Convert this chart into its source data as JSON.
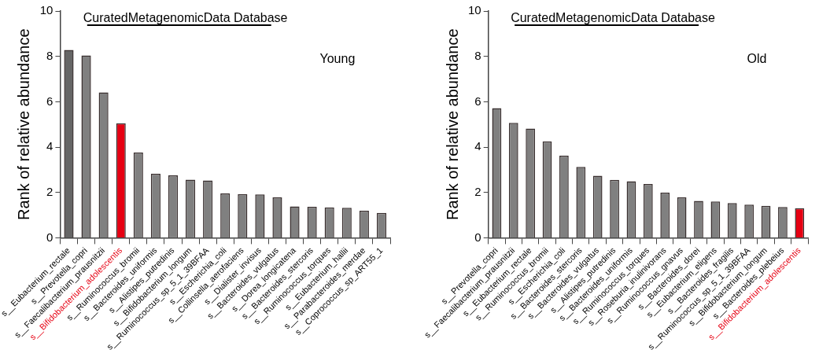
{
  "chart_data": [
    {
      "type": "bar",
      "title": "CuratedMetagenomicData Database",
      "ylabel": "Rank of relative abundance",
      "annotations": [
        "Young"
      ],
      "categories": [
        "s__Eubacterium_rectale",
        "s__Prevotella_copri",
        "s__Faecalibacterium_prausnitzii",
        "s__Bifidobacterium_adolescentis",
        "s__Ruminococcus_bromii",
        "s__Bacteroides_uniformis",
        "s__Alistipes_putredinis",
        "s__Bifidobacterium_longum",
        "s__Ruminococcus_sp_5_1_39BFAA",
        "s__Escherichia_coli",
        "s__Collinsella_aerofaciens",
        "s__Dialister_invisus",
        "s__Bacteroides_vulgatus",
        "s__Dorea_longicatena",
        "s__Bacteroides_stercoris",
        "s__Ruminococcus_torques",
        "s__Eubacterium_hallii",
        "s__Parabacteroides_merdae",
        "s__Coprococcus_sp_ART55_1"
      ],
      "values": [
        8.28,
        8.04,
        6.41,
        5.05,
        3.76,
        2.82,
        2.75,
        2.56,
        2.53,
        1.96,
        1.92,
        1.91,
        1.78,
        1.38,
        1.37,
        1.34,
        1.32,
        1.19,
        1.1
      ],
      "colors": [
        "#666666",
        "#808080",
        "#808080",
        "#e60012",
        "#808080",
        "#808080",
        "#808080",
        "#808080",
        "#808080",
        "#808080",
        "#808080",
        "#808080",
        "#808080",
        "#808080",
        "#808080",
        "#808080",
        "#808080",
        "#808080",
        "#808080"
      ],
      "ylim": [
        0,
        10
      ],
      "yticks": [
        0,
        2,
        4,
        6,
        8,
        10
      ],
      "grid": false,
      "legend": false
    },
    {
      "type": "bar",
      "title": "CuratedMetagenomicData Database",
      "ylabel": "Rank of relative abundance",
      "annotations": [
        "Old"
      ],
      "categories": [
        "s__Prevotella_copri",
        "s__Faecalibacterium_prausnitzii",
        "s__Eubacterium_rectale",
        "s__Ruminococcus_bromii",
        "s__Escherichia_coli",
        "s__Bacteroides_stercoris",
        "s__Bacteroides_vulgatus",
        "s__Alistipes_putredinis",
        "s__Bacteroides_uniformis",
        "s__Ruminococcus_torques",
        "s__Roseburia_inulinivorans",
        "s__Ruminococcus_gnavus",
        "s__Bacteroides_dorei",
        "s__Eubacterium_eligens",
        "s__Bacteroides_fragilis",
        "s__Ruminococcus_sp_5_1_39BFAA",
        "s__Bifidobacterium_longum",
        "s__Bacteroides_plebeius",
        "s__Bifidobacterium_adolescentis"
      ],
      "values": [
        5.72,
        5.07,
        4.82,
        4.25,
        3.62,
        3.13,
        2.74,
        2.55,
        2.49,
        2.37,
        1.99,
        1.78,
        1.63,
        1.6,
        1.53,
        1.46,
        1.41,
        1.36,
        1.31
      ],
      "colors": [
        "#808080",
        "#808080",
        "#808080",
        "#808080",
        "#808080",
        "#808080",
        "#808080",
        "#808080",
        "#808080",
        "#808080",
        "#808080",
        "#808080",
        "#808080",
        "#808080",
        "#808080",
        "#808080",
        "#808080",
        "#808080",
        "#e60012"
      ],
      "ylim": [
        0,
        10
      ],
      "yticks": [
        0,
        2,
        4,
        6,
        8,
        10
      ],
      "grid": false,
      "legend": false
    }
  ]
}
